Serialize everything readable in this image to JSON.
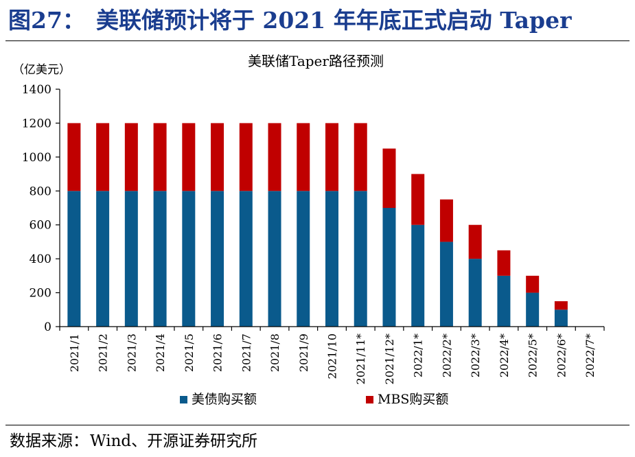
{
  "figure": {
    "label": "图27：",
    "title": "美联储预计将于 2021 年年底正式启动 Taper"
  },
  "source": {
    "label": "数据来源：",
    "text": "Wind、开源证券研究所"
  },
  "chart_data": {
    "type": "bar",
    "stacked": true,
    "title": "美联储Taper路径预测",
    "ylabel": "（亿美元）",
    "xlabel": "",
    "ylim": [
      0,
      1400
    ],
    "yticks": [
      0,
      200,
      400,
      600,
      800,
      1000,
      1200,
      1400
    ],
    "grid": false,
    "legend_position": "bottom",
    "categories": [
      "2021/1",
      "2021/2",
      "2021/3",
      "2021/4",
      "2021/5",
      "2021/6",
      "2021/7",
      "2021/8",
      "2021/9",
      "2021/10",
      "2021/11*",
      "2021/12*",
      "2022/1*",
      "2022/2*",
      "2022/3*",
      "2022/4*",
      "2022/5*",
      "2022/6*",
      "2022/7*"
    ],
    "series": [
      {
        "name": "美债购买额",
        "color": "#0a5a8c",
        "values": [
          800,
          800,
          800,
          800,
          800,
          800,
          800,
          800,
          800,
          800,
          800,
          700,
          600,
          500,
          400,
          300,
          200,
          100,
          0
        ]
      },
      {
        "name": "MBS购买额",
        "color": "#c00000",
        "values": [
          400,
          400,
          400,
          400,
          400,
          400,
          400,
          400,
          400,
          400,
          400,
          350,
          300,
          250,
          200,
          150,
          100,
          50,
          0
        ]
      }
    ]
  }
}
